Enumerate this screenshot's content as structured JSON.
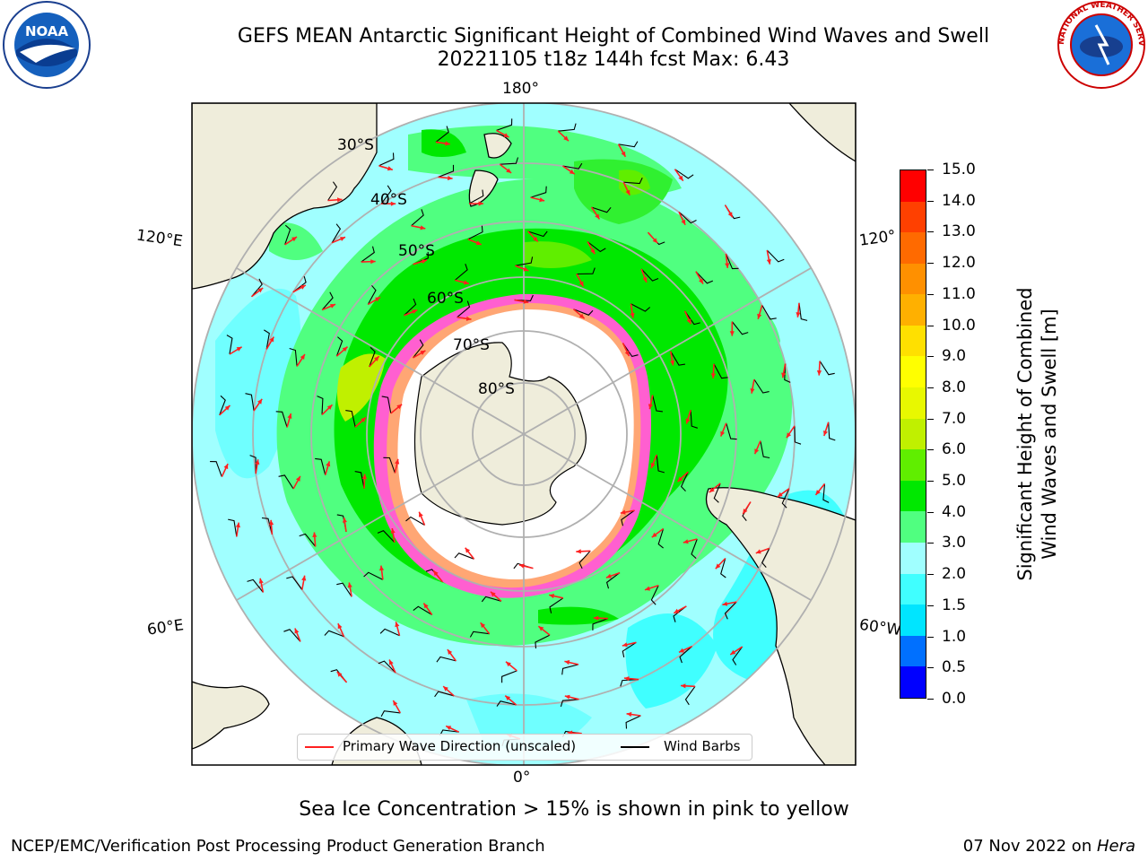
{
  "header": {
    "title_line1": "GEFS MEAN Antarctic Significant Height of Combined Wind Waves and Swell",
    "title_line2": "20221105 t18z 144h fcst   Max: 6.43"
  },
  "logos": {
    "left": "NOAA",
    "right": "NATIONAL WEATHER SERVICE"
  },
  "map": {
    "meridian_labels": {
      "top": "180°",
      "bottom": "0°",
      "left_upper": "120°E",
      "left_lower": "60°E",
      "right_upper": "120°",
      "right_lower": "60°W"
    },
    "latitude_labels": [
      "30°S",
      "40°S",
      "50°S",
      "60°S",
      "70°S",
      "80°S"
    ],
    "projection": "south-polar-stereographic",
    "graticule": true
  },
  "colorbar": {
    "label_line1": "Significant Height of Combined",
    "label_line2": "Wind Waves and Swell [m]",
    "ticks": [
      "0.0",
      "0.5",
      "1.0",
      "1.5",
      "2.0",
      "3.0",
      "4.0",
      "5.0",
      "6.0",
      "7.0",
      "8.0",
      "9.0",
      "10.0",
      "11.0",
      "12.0",
      "13.0",
      "14.0",
      "15.0"
    ],
    "colors": [
      "#0000ff",
      "#0070ff",
      "#00e5ff",
      "#40ffff",
      "#a0ffff",
      "#50ff80",
      "#00e800",
      "#60ee00",
      "#c0f000",
      "#e8f800",
      "#ffff00",
      "#ffe000",
      "#ffb000",
      "#ff9000",
      "#ff6a00",
      "#ff4000",
      "#ff0000"
    ]
  },
  "legend": {
    "wave_direction": "Primary Wave Direction (unscaled)",
    "wind_barbs": "Wind Barbs",
    "wave_color": "#ff2020",
    "barb_color": "#000000"
  },
  "notes": {
    "sea_ice": "Sea Ice Concentration > 15% is shown in pink to yellow"
  },
  "footer": {
    "left": "NCEP/EMC/Verification Post Processing Product Generation Branch",
    "right_date": "07 Nov 2022 on ",
    "right_host": "Hera"
  }
}
